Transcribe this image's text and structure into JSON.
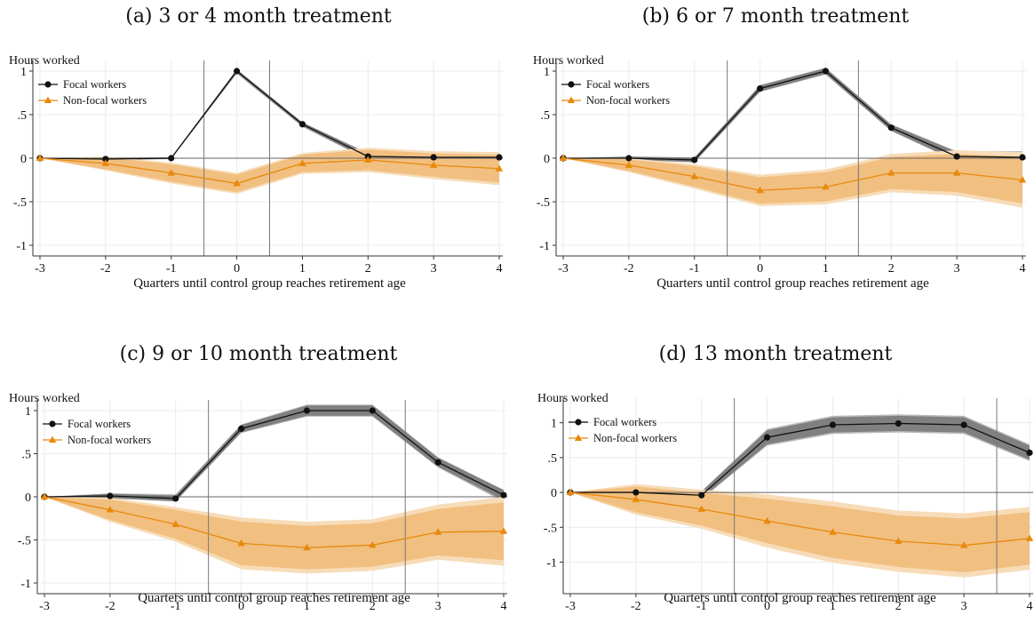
{
  "chart_data": [
    {
      "type": "line",
      "title": "(a) 3 or 4 month treatment",
      "ylabel": "Hours worked",
      "xlabel": "Quarters until control group reaches retirement age",
      "xlim": [
        -3,
        4
      ],
      "ylim": [
        -1,
        1
      ],
      "x_ticks": [
        "-3",
        "-2",
        "-1",
        "0",
        "1",
        "2",
        "3",
        "4"
      ],
      "y_ticks": [
        {
          "v": 1,
          "l": "1"
        },
        {
          "v": 0.5,
          "l": ".5"
        },
        {
          "v": 0,
          "l": "0"
        },
        {
          "v": -0.5,
          "l": "-.5"
        },
        {
          "v": -1,
          "l": "-1"
        }
      ],
      "vlines": [
        -0.5,
        0.5
      ],
      "legend_position": "top-left",
      "grid": true,
      "x": [
        -3,
        -2,
        -1,
        0,
        1,
        2,
        3,
        4
      ],
      "series": [
        {
          "name": "Focal workers",
          "color": "#111111",
          "marker": "circle",
          "values": [
            0,
            -0.01,
            0,
            1.0,
            0.39,
            0.02,
            0.01,
            0.01
          ],
          "ci95": [
            [
              0,
              0
            ],
            [
              -0.02,
              0.01
            ],
            [
              -0.01,
              0.01
            ],
            [
              0.97,
              1.02
            ],
            [
              0.36,
              0.41
            ],
            [
              -0.02,
              0.06
            ],
            [
              -0.04,
              0.06
            ],
            [
              -0.04,
              0.06
            ]
          ]
        },
        {
          "name": "Non-focal workers",
          "color": "#E8890C",
          "marker": "triangle",
          "values": [
            0,
            -0.06,
            -0.17,
            -0.29,
            -0.06,
            -0.02,
            -0.08,
            -0.12
          ],
          "ci95": [
            [
              0,
              0
            ],
            [
              -0.14,
              0.02
            ],
            [
              -0.29,
              -0.05
            ],
            [
              -0.41,
              -0.17
            ],
            [
              -0.18,
              0.06
            ],
            [
              -0.16,
              0.12
            ],
            [
              -0.24,
              0.08
            ],
            [
              -0.31,
              0.07
            ]
          ]
        }
      ]
    },
    {
      "type": "line",
      "title": "(b) 6 or 7 month treatment",
      "ylabel": "Hours worked",
      "xlabel": "Quarters until control group reaches retirement age",
      "xlim": [
        -3,
        4
      ],
      "ylim": [
        -1,
        1
      ],
      "x_ticks": [
        "-3",
        "-2",
        "-1",
        "0",
        "1",
        "2",
        "3",
        "4"
      ],
      "y_ticks": [
        {
          "v": 1,
          "l": "1"
        },
        {
          "v": 0.5,
          "l": ".5"
        },
        {
          "v": 0,
          "l": "0"
        },
        {
          "v": -0.5,
          "l": "-.5"
        },
        {
          "v": -1,
          "l": "-1"
        }
      ],
      "vlines": [
        -0.5,
        1.5
      ],
      "legend_position": "top-left",
      "grid": true,
      "x": [
        -3,
        -2,
        -1,
        0,
        1,
        2,
        3,
        4
      ],
      "series": [
        {
          "name": "Focal workers",
          "color": "#111111",
          "marker": "circle",
          "values": [
            0,
            0,
            -0.02,
            0.8,
            1.0,
            0.35,
            0.02,
            0.01
          ],
          "ci95": [
            [
              0,
              0
            ],
            [
              -0.02,
              0.02
            ],
            [
              -0.05,
              0.01
            ],
            [
              0.76,
              0.84
            ],
            [
              0.96,
              1.04
            ],
            [
              0.31,
              0.39
            ],
            [
              -0.04,
              0.08
            ],
            [
              -0.06,
              0.08
            ]
          ]
        },
        {
          "name": "Non-focal workers",
          "color": "#E8890C",
          "marker": "triangle",
          "values": [
            0,
            -0.08,
            -0.21,
            -0.37,
            -0.33,
            -0.17,
            -0.17,
            -0.25
          ],
          "ci95": [
            [
              0,
              0
            ],
            [
              -0.16,
              0
            ],
            [
              -0.35,
              -0.07
            ],
            [
              -0.55,
              -0.19
            ],
            [
              -0.53,
              -0.13
            ],
            [
              -0.39,
              0.05
            ],
            [
              -0.43,
              0.09
            ],
            [
              -0.57,
              0.07
            ]
          ]
        }
      ]
    },
    {
      "type": "line",
      "title": "(c) 9 or 10 month treatment",
      "ylabel": "Hours worked",
      "xlabel": "Quarters until control group reaches retirement age",
      "xlim": [
        -3,
        4
      ],
      "ylim": [
        -1,
        1
      ],
      "x_ticks": [
        "-3",
        "-2",
        "-1",
        "0",
        "1",
        "2",
        "3",
        "4"
      ],
      "y_ticks": [
        {
          "v": 1,
          "l": "1"
        },
        {
          "v": 0.5,
          "l": ".5"
        },
        {
          "v": 0,
          "l": "0"
        },
        {
          "v": -0.5,
          "l": "-.5"
        },
        {
          "v": -1,
          "l": "-1"
        }
      ],
      "vlines": [
        -0.5,
        2.5
      ],
      "legend_position": "top-left",
      "grid": true,
      "x": [
        -3,
        -2,
        -1,
        0,
        1,
        2,
        3,
        4
      ],
      "series": [
        {
          "name": "Focal workers",
          "color": "#111111",
          "marker": "circle",
          "values": [
            0,
            0.01,
            -0.02,
            0.79,
            1.0,
            1.0,
            0.4,
            0.02
          ],
          "ci95": [
            [
              0,
              0
            ],
            [
              -0.02,
              0.04
            ],
            [
              -0.05,
              0.03
            ],
            [
              0.74,
              0.84
            ],
            [
              0.93,
              1.07
            ],
            [
              0.93,
              1.07
            ],
            [
              0.34,
              0.46
            ],
            [
              -0.06,
              0.08
            ]
          ]
        },
        {
          "name": "Non-focal workers",
          "color": "#E8890C",
          "marker": "triangle",
          "values": [
            0,
            -0.15,
            -0.32,
            -0.54,
            -0.59,
            -0.56,
            -0.41,
            -0.4
          ],
          "ci95": [
            [
              0,
              0
            ],
            [
              -0.29,
              -0.01
            ],
            [
              -0.52,
              -0.12
            ],
            [
              -0.84,
              -0.24
            ],
            [
              -0.89,
              -0.29
            ],
            [
              -0.86,
              -0.26
            ],
            [
              -0.73,
              -0.09
            ],
            [
              -0.8,
              0
            ]
          ]
        }
      ]
    },
    {
      "type": "line",
      "title": "(d) 13 month treatment",
      "ylabel": "Hours worked",
      "xlabel": "Quarters until control group reaches retirement age",
      "xlim": [
        -3,
        4
      ],
      "ylim": [
        -1.3,
        1.2
      ],
      "x_ticks": [
        "-3",
        "-2",
        "-1",
        "0",
        "1",
        "2",
        "3",
        "4"
      ],
      "y_ticks": [
        {
          "v": 1,
          "l": "1"
        },
        {
          "v": 0.5,
          "l": ".5"
        },
        {
          "v": 0,
          "l": "0"
        },
        {
          "v": -0.5,
          "l": "-.5"
        },
        {
          "v": -1,
          "l": "-1"
        }
      ],
      "vlines": [
        -0.5,
        3.5
      ],
      "legend_position": "top-left",
      "grid": true,
      "x": [
        -3,
        -2,
        -1,
        0,
        1,
        2,
        3,
        4
      ],
      "series": [
        {
          "name": "Focal workers",
          "color": "#111111",
          "marker": "circle",
          "values": [
            0,
            0,
            -0.04,
            0.79,
            0.97,
            0.99,
            0.97,
            0.57
          ],
          "ci95": [
            [
              0,
              0
            ],
            [
              -0.05,
              0.05
            ],
            [
              -0.1,
              0.02
            ],
            [
              0.67,
              0.91
            ],
            [
              0.84,
              1.1
            ],
            [
              0.86,
              1.12
            ],
            [
              0.84,
              1.1
            ],
            [
              0.45,
              0.69
            ]
          ]
        },
        {
          "name": "Non-focal workers",
          "color": "#E8890C",
          "marker": "triangle",
          "values": [
            0,
            -0.1,
            -0.24,
            -0.41,
            -0.57,
            -0.7,
            -0.76,
            -0.66
          ],
          "ci95": [
            [
              0,
              0
            ],
            [
              -0.32,
              0.12
            ],
            [
              -0.52,
              0.04
            ],
            [
              -0.79,
              -0.03
            ],
            [
              -1.01,
              -0.13
            ],
            [
              -1.14,
              -0.26
            ],
            [
              -1.22,
              -0.3
            ],
            [
              -1.11,
              -0.21
            ]
          ]
        }
      ]
    }
  ]
}
